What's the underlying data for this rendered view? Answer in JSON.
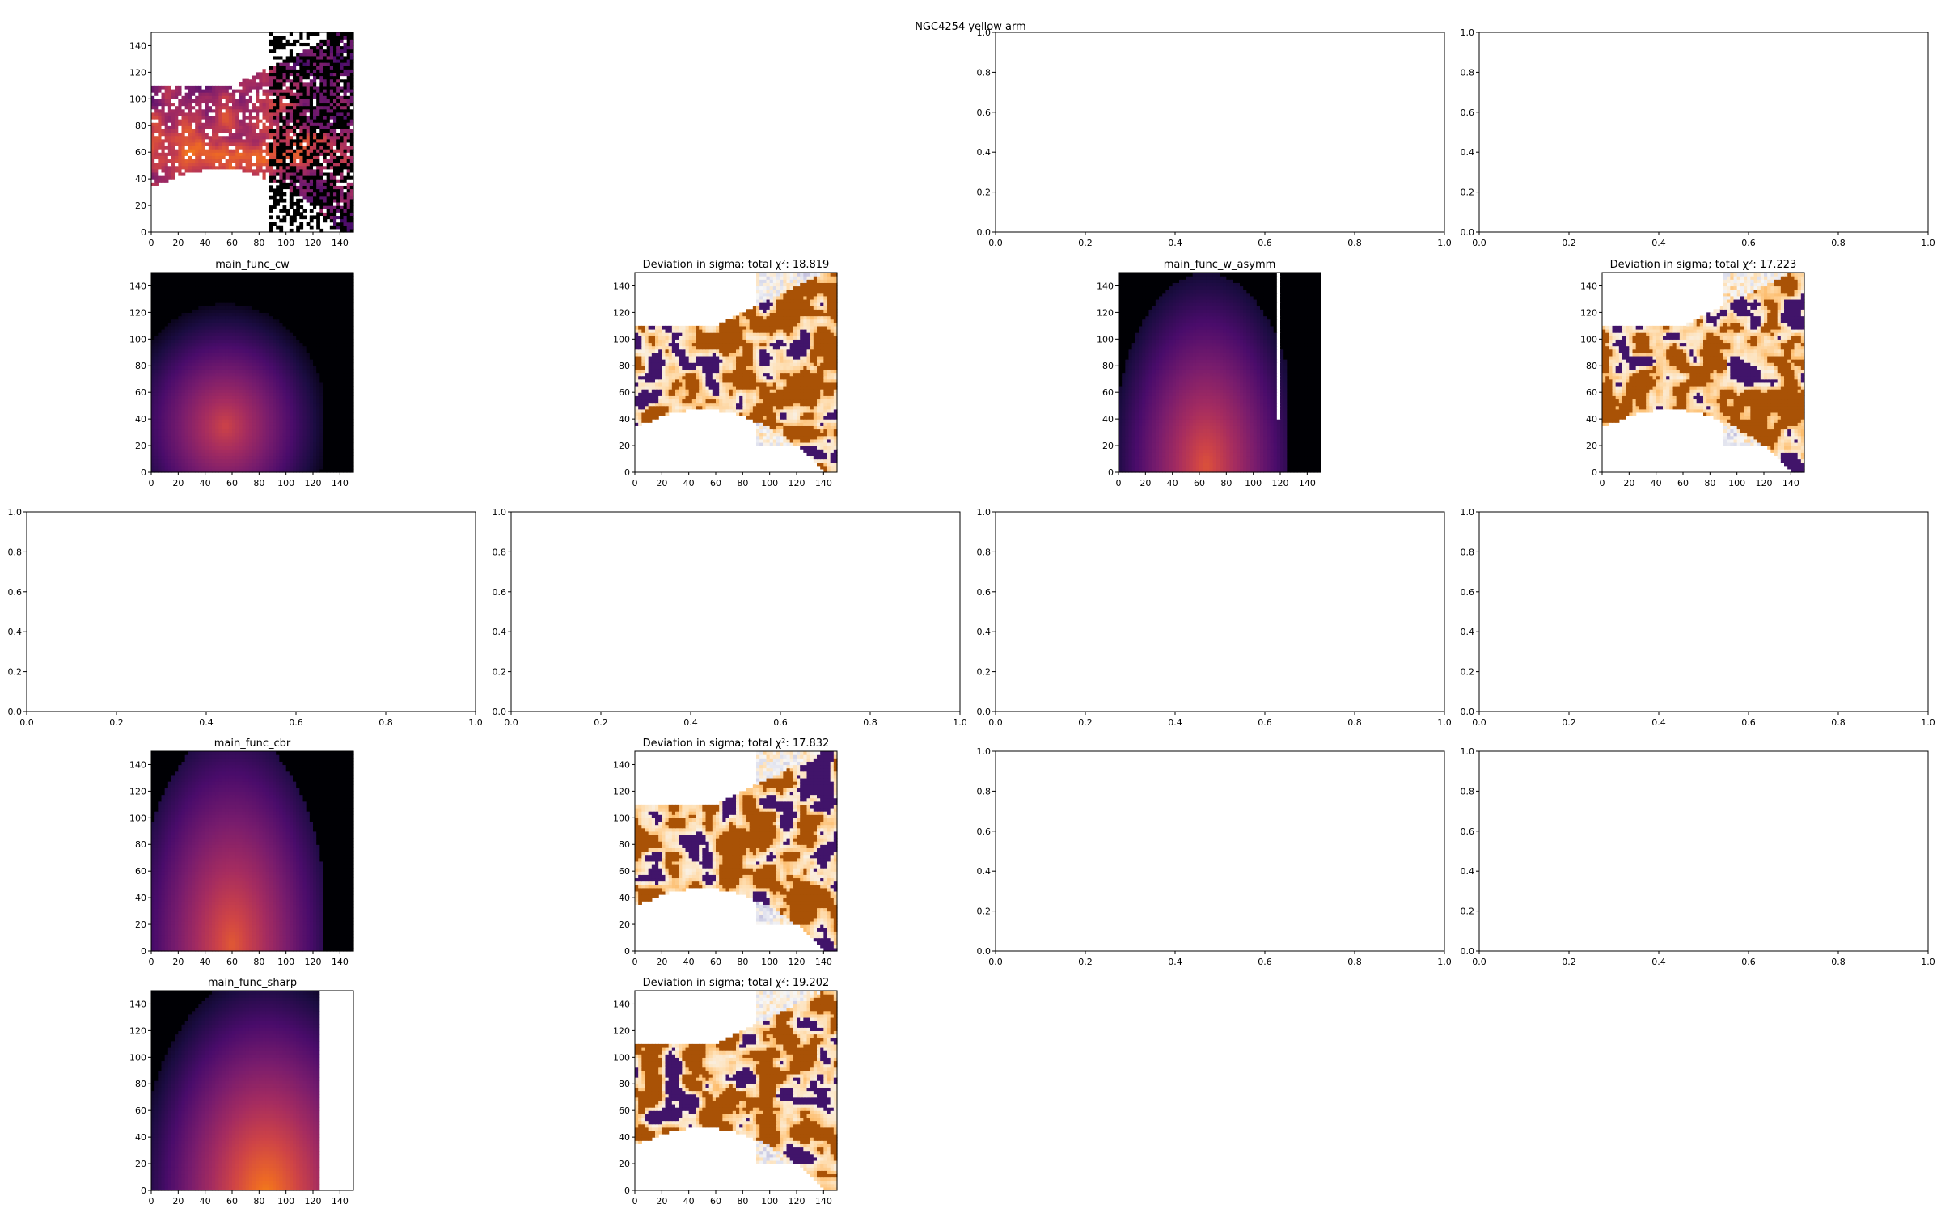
{
  "figure": {
    "title": "NGC4254 yellow arm"
  },
  "colors": {
    "axes": "#000000",
    "background": "#ffffff",
    "inferno": [
      "#000004",
      "#1b0c41",
      "#4a0c6b",
      "#781c6d",
      "#a52c60",
      "#cf4446",
      "#ed6925",
      "#fb9b06",
      "#f7d13d",
      "#fcffa4"
    ],
    "puor": [
      "#2d004b",
      "#542788",
      "#8073ac",
      "#b2abd2",
      "#d8daeb",
      "#f7f7f7",
      "#fee0b6",
      "#fdb863",
      "#e08214",
      "#b35806",
      "#7f3b08"
    ]
  },
  "chart_data": [
    {
      "id": "r0c0",
      "type": "heatmap",
      "title": "",
      "colormap": "inferno",
      "content": "data",
      "xlim": [
        0,
        150
      ],
      "ylim": [
        0,
        150
      ],
      "xticks": [
        "0",
        "20",
        "40",
        "60",
        "80",
        "100",
        "120",
        "140"
      ],
      "yticks": [
        "0",
        "20",
        "40",
        "60",
        "80",
        "100",
        "120",
        "140"
      ]
    },
    {
      "id": "r0c2",
      "type": "empty",
      "title": "",
      "xlim": [
        0,
        1
      ],
      "ylim": [
        0,
        1
      ],
      "xticks": [
        "0.0",
        "0.2",
        "0.4",
        "0.6",
        "0.8",
        "1.0"
      ],
      "yticks": [
        "0.0",
        "0.2",
        "0.4",
        "0.6",
        "0.8",
        "1.0"
      ]
    },
    {
      "id": "r0c3",
      "type": "empty",
      "title": "",
      "xlim": [
        0,
        1
      ],
      "ylim": [
        0,
        1
      ],
      "xticks": [
        "0.0",
        "0.2",
        "0.4",
        "0.6",
        "0.8",
        "1.0"
      ],
      "yticks": [
        "0.0",
        "0.2",
        "0.4",
        "0.6",
        "0.8",
        "1.0"
      ]
    },
    {
      "id": "r1c0",
      "type": "heatmap",
      "title": "main_func_cw",
      "colormap": "inferno",
      "content": "model_cw",
      "xlim": [
        0,
        150
      ],
      "ylim": [
        0,
        150
      ],
      "xticks": [
        "0",
        "20",
        "40",
        "60",
        "80",
        "100",
        "120",
        "140"
      ],
      "yticks": [
        "0",
        "20",
        "40",
        "60",
        "80",
        "100",
        "120",
        "140"
      ]
    },
    {
      "id": "r1c1",
      "type": "heatmap",
      "title": "Deviation in sigma; total χ²: 18.819",
      "colormap": "PuOr",
      "content": "deviation",
      "xlim": [
        0,
        150
      ],
      "ylim": [
        0,
        150
      ],
      "xticks": [
        "0",
        "20",
        "40",
        "60",
        "80",
        "100",
        "120",
        "140"
      ],
      "yticks": [
        "0",
        "20",
        "40",
        "60",
        "80",
        "100",
        "120",
        "140"
      ]
    },
    {
      "id": "r1c2",
      "type": "heatmap",
      "title": "main_func_w_asymm",
      "colormap": "inferno",
      "content": "model_asymm",
      "xlim": [
        0,
        150
      ],
      "ylim": [
        0,
        150
      ],
      "xticks": [
        "0",
        "20",
        "40",
        "60",
        "80",
        "100",
        "120",
        "140"
      ],
      "yticks": [
        "0",
        "20",
        "40",
        "60",
        "80",
        "100",
        "120",
        "140"
      ]
    },
    {
      "id": "r1c3",
      "type": "heatmap",
      "title": "Deviation in sigma; total χ²: 17.223",
      "colormap": "PuOr",
      "content": "deviation",
      "xlim": [
        0,
        150
      ],
      "ylim": [
        0,
        150
      ],
      "xticks": [
        "0",
        "20",
        "40",
        "60",
        "80",
        "100",
        "120",
        "140"
      ],
      "yticks": [
        "0",
        "20",
        "40",
        "60",
        "80",
        "100",
        "120",
        "140"
      ]
    },
    {
      "id": "r2c0",
      "type": "empty",
      "title": "",
      "xlim": [
        0,
        1
      ],
      "ylim": [
        0,
        1
      ],
      "xticks": [
        "0.0",
        "0.2",
        "0.4",
        "0.6",
        "0.8",
        "1.0"
      ],
      "yticks": [
        "0.0",
        "0.2",
        "0.4",
        "0.6",
        "0.8",
        "1.0"
      ]
    },
    {
      "id": "r2c1",
      "type": "empty",
      "title": "",
      "xlim": [
        0,
        1
      ],
      "ylim": [
        0,
        1
      ],
      "xticks": [
        "0.0",
        "0.2",
        "0.4",
        "0.6",
        "0.8",
        "1.0"
      ],
      "yticks": [
        "0.0",
        "0.2",
        "0.4",
        "0.6",
        "0.8",
        "1.0"
      ]
    },
    {
      "id": "r2c2",
      "type": "empty",
      "title": "",
      "xlim": [
        0,
        1
      ],
      "ylim": [
        0,
        1
      ],
      "xticks": [
        "0.0",
        "0.2",
        "0.4",
        "0.6",
        "0.8",
        "1.0"
      ],
      "yticks": [
        "0.0",
        "0.2",
        "0.4",
        "0.6",
        "0.8",
        "1.0"
      ]
    },
    {
      "id": "r2c3",
      "type": "empty",
      "title": "",
      "xlim": [
        0,
        1
      ],
      "ylim": [
        0,
        1
      ],
      "xticks": [
        "0.0",
        "0.2",
        "0.4",
        "0.6",
        "0.8",
        "1.0"
      ],
      "yticks": [
        "0.0",
        "0.2",
        "0.4",
        "0.6",
        "0.8",
        "1.0"
      ]
    },
    {
      "id": "r3c0",
      "type": "heatmap",
      "title": "main_func_cbr",
      "colormap": "inferno",
      "content": "model_cbr",
      "xlim": [
        0,
        150
      ],
      "ylim": [
        0,
        150
      ],
      "xticks": [
        "0",
        "20",
        "40",
        "60",
        "80",
        "100",
        "120",
        "140"
      ],
      "yticks": [
        "0",
        "20",
        "40",
        "60",
        "80",
        "100",
        "120",
        "140"
      ]
    },
    {
      "id": "r3c1",
      "type": "heatmap",
      "title": "Deviation in sigma; total χ²: 17.832",
      "colormap": "PuOr",
      "content": "deviation",
      "xlim": [
        0,
        150
      ],
      "ylim": [
        0,
        150
      ],
      "xticks": [
        "0",
        "20",
        "40",
        "60",
        "80",
        "100",
        "120",
        "140"
      ],
      "yticks": [
        "0",
        "20",
        "40",
        "60",
        "80",
        "100",
        "120",
        "140"
      ]
    },
    {
      "id": "r3c2",
      "type": "empty",
      "title": "",
      "xlim": [
        0,
        1
      ],
      "ylim": [
        0,
        1
      ],
      "xticks": [
        "0.0",
        "0.2",
        "0.4",
        "0.6",
        "0.8",
        "1.0"
      ],
      "yticks": [
        "0.0",
        "0.2",
        "0.4",
        "0.6",
        "0.8",
        "1.0"
      ]
    },
    {
      "id": "r3c3",
      "type": "empty",
      "title": "",
      "xlim": [
        0,
        1
      ],
      "ylim": [
        0,
        1
      ],
      "xticks": [
        "0.0",
        "0.2",
        "0.4",
        "0.6",
        "0.8",
        "1.0"
      ],
      "yticks": [
        "0.0",
        "0.2",
        "0.4",
        "0.6",
        "0.8",
        "1.0"
      ]
    },
    {
      "id": "r4c0",
      "type": "heatmap",
      "title": "main_func_sharp",
      "colormap": "inferno",
      "content": "model_sharp",
      "xlim": [
        0,
        150
      ],
      "ylim": [
        0,
        150
      ],
      "xticks": [
        "0",
        "20",
        "40",
        "60",
        "80",
        "100",
        "120",
        "140"
      ],
      "yticks": [
        "0",
        "20",
        "40",
        "60",
        "80",
        "100",
        "120",
        "140"
      ]
    },
    {
      "id": "r4c1",
      "type": "heatmap",
      "title": "Deviation in sigma; total χ²: 19.202",
      "colormap": "PuOr",
      "content": "deviation",
      "xlim": [
        0,
        150
      ],
      "ylim": [
        0,
        150
      ],
      "xticks": [
        "0",
        "20",
        "40",
        "60",
        "80",
        "100",
        "120",
        "140"
      ],
      "yticks": [
        "0",
        "20",
        "40",
        "60",
        "80",
        "100",
        "120",
        "140"
      ]
    }
  ]
}
